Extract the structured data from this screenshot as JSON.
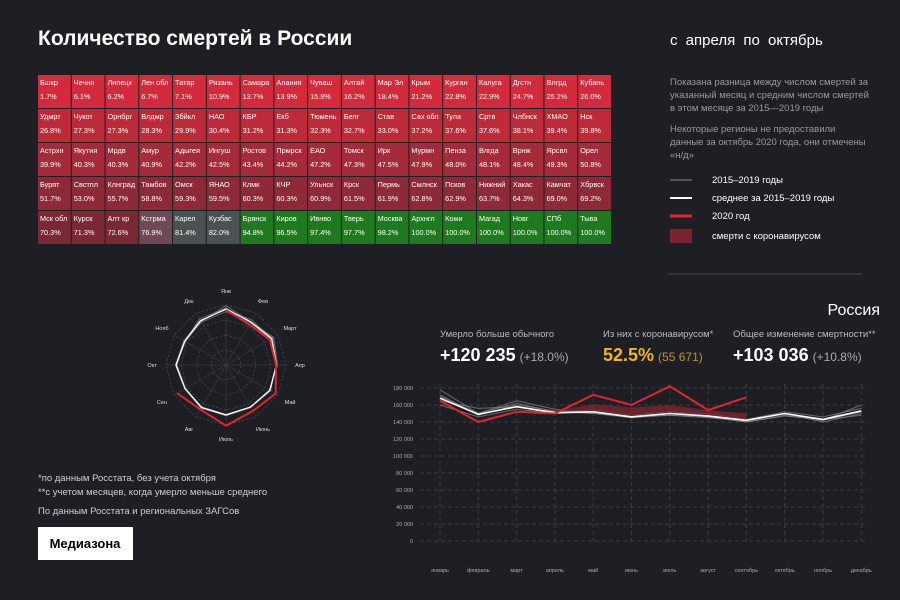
{
  "header": {
    "title": "Количество смертей в России",
    "period": "с апреля по октябрь"
  },
  "table": {
    "rows": [
      [
        [
          "Бшкр",
          "1.7%"
        ],
        [
          "Чечня",
          "6.1%"
        ],
        [
          "Липецк",
          "6.2%"
        ],
        [
          "Лен обл",
          "6.7%"
        ],
        [
          "Татар",
          "7.1%"
        ],
        [
          "Рязань",
          "10.9%"
        ],
        [
          "Самара",
          "13.7%"
        ],
        [
          "Алания",
          "13.9%"
        ],
        [
          "Чуваш",
          "15.8%"
        ],
        [
          "Алтай",
          "16.2%"
        ],
        [
          "Мар Эл",
          "18.4%"
        ],
        [
          "Крым",
          "21.2%"
        ],
        [
          "Курган",
          "22.8%"
        ],
        [
          "Калуга",
          "22.9%"
        ],
        [
          "Дгстн",
          "24.7%"
        ],
        [
          "Влгрд",
          "25.2%"
        ],
        [
          "Кубань",
          "26.0%"
        ]
      ],
      [
        [
          "Удмрт",
          "26.8%"
        ],
        [
          "Чукот",
          "27.3%"
        ],
        [
          "Орнбрг",
          "27.3%"
        ],
        [
          "Влдмр",
          "28.3%"
        ],
        [
          "Збйкл",
          "29.9%"
        ],
        [
          "НАО",
          "30.4%"
        ],
        [
          "КБР",
          "31.2%"
        ],
        [
          "Екб",
          "31.3%"
        ],
        [
          "Тюмень",
          "32.3%"
        ],
        [
          "Белг",
          "32.7%"
        ],
        [
          "Став",
          "33.0%"
        ],
        [
          "Сах обл",
          "37.2%"
        ],
        [
          "Тула",
          "37.6%"
        ],
        [
          "Сртв",
          "37.6%"
        ],
        [
          "Члбнск",
          "38.1%"
        ],
        [
          "ХМАО",
          "39.4%"
        ],
        [
          "Нск",
          "39.8%"
        ]
      ],
      [
        [
          "Астрхн",
          "39.9%"
        ],
        [
          "Якутия",
          "40.3%"
        ],
        [
          "Мрдв",
          "40.3%"
        ],
        [
          "Амур",
          "40.9%"
        ],
        [
          "Адыгея",
          "42.2%"
        ],
        [
          "Ингуш",
          "42.5%"
        ],
        [
          "Ростов",
          "43.4%"
        ],
        [
          "Прмрск",
          "44.2%"
        ],
        [
          "ЕАО",
          "47.2%"
        ],
        [
          "Томск",
          "47.3%"
        ],
        [
          "Ирк",
          "47.5%"
        ],
        [
          "Мурмн",
          "47.9%"
        ],
        [
          "Пенза",
          "48.0%"
        ],
        [
          "Влгда",
          "48.1%"
        ],
        [
          "Врнж",
          "48.4%"
        ],
        [
          "Ярсвл",
          "49.3%"
        ],
        [
          "Орел",
          "50.8%"
        ]
      ],
      [
        [
          "Бурят",
          "51.7%"
        ],
        [
          "Свстпл",
          "53.0%"
        ],
        [
          "Клнград",
          "55.7%"
        ],
        [
          "Тамбов",
          "58.8%"
        ],
        [
          "Омск",
          "59.3%"
        ],
        [
          "ЯНАО",
          "59.5%"
        ],
        [
          "Клмк",
          "60.3%"
        ],
        [
          "КЧР",
          "60.3%"
        ],
        [
          "Ульнск",
          "60.9%"
        ],
        [
          "Крск",
          "61.5%"
        ],
        [
          "Пермь",
          "61.9%"
        ],
        [
          "Смлнск",
          "62.8%"
        ],
        [
          "Псков",
          "62.9%"
        ],
        [
          "Нижний",
          "63.7%"
        ],
        [
          "Хакас",
          "64.3%"
        ],
        [
          "Камчат",
          "69.0%"
        ],
        [
          "Хбрвск",
          "69.2%"
        ]
      ],
      [
        [
          "Мск обл",
          "70.3%"
        ],
        [
          "Курск",
          "71.3%"
        ],
        [
          "Алт кр",
          "72.6%"
        ],
        [
          "Кстрма",
          "76.9%"
        ],
        [
          "Карел",
          "81.4%"
        ],
        [
          "Кузбас",
          "82.0%"
        ],
        [
          "Брянск",
          "94.8%"
        ],
        [
          "Киров",
          "96.5%"
        ],
        [
          "Ивнво",
          "97.4%"
        ],
        [
          "Тверь",
          "97.7%"
        ],
        [
          "Москва",
          "98.2%"
        ],
        [
          "Архнгл",
          "100.0%"
        ],
        [
          "Коми",
          "100.0%"
        ],
        [
          "Магад",
          "100.0%"
        ],
        [
          "Новг",
          "100.0%"
        ],
        [
          "СПб",
          "100.0%"
        ],
        [
          "Тыва",
          "100.0%"
        ]
      ]
    ]
  },
  "description": [
    "Показана разница между числом смертей за указанный месяц и средним числом смертей в этом месяце за 2015—2019 годы",
    "Некоторые регионы не предоставили данные за октябрь 2020 года, они отмечены «н/д»"
  ],
  "region": "Россия",
  "stats": [
    {
      "label": "Умерло больше обычного",
      "value": "+120 235",
      "extra": "(+18.0%)",
      "color": "#ffffff"
    },
    {
      "label": "Из них с коронавирусом*",
      "value": "52.5%",
      "extra": "(55 671)",
      "color": "#f2b51c"
    },
    {
      "label": "Общее изменение смертности**",
      "value": "+103 036",
      "extra": "(+10.8%)",
      "color": "#ffffff"
    }
  ],
  "footnotes": [
    "*по данным Росстата, без учета октября",
    "**с учетом месяцев, когда умерло меньше среднего",
    "По данным Росстата и региональных ЗАГСов"
  ],
  "logo": "Медиазона",
  "chart_data": [
    {
      "type": "radar",
      "categories": [
        "Янв",
        "Фев",
        "Март",
        "Апр",
        "Май",
        "Июнь",
        "Июль",
        "Авг",
        "Сен",
        "Окт",
        "Нояб",
        "Дек"
      ],
      "rlim": [
        0,
        180000
      ]
    },
    {
      "type": "line",
      "categories": [
        "январь",
        "февраль",
        "март",
        "апрель",
        "май",
        "июнь",
        "июль",
        "август",
        "сентябрь",
        "октябрь",
        "ноябрь",
        "декабрь"
      ],
      "ylim": [
        0,
        180000
      ],
      "yticks": [
        0,
        {
          "value": 20000,
          "label": "20 000"
        },
        {
          "value": 40000,
          "label": "40 000"
        },
        {
          "value": 60000,
          "label": "60 000"
        },
        {
          "value": 80000,
          "label": "80 000"
        },
        {
          "value": 100000,
          "label": "100 000"
        },
        {
          "value": 120000,
          "label": "120 000"
        },
        {
          "value": 140000,
          "label": "140 000"
        },
        {
          "value": 160000,
          "label": "160 000"
        },
        {
          "value": 180000,
          "label": "180 000"
        }
      ],
      "grid": true,
      "years": {
        "name": "2015–2019 годы",
        "color": "#8a8a8a",
        "lines": [
          [
            170000,
            150000,
            162000,
            152000,
            150000,
            145000,
            150000,
            147000,
            140000,
            148000,
            142000,
            160000
          ],
          [
            165000,
            156000,
            158000,
            150000,
            155000,
            148000,
            152000,
            150000,
            143000,
            152000,
            146000,
            156000
          ],
          [
            172000,
            148000,
            160000,
            153000,
            152000,
            146000,
            148000,
            145000,
            141000,
            150000,
            140000,
            150000
          ],
          [
            178000,
            150000,
            165000,
            155000,
            150000,
            147000,
            152000,
            148000,
            142000,
            150000,
            142000,
            152000
          ],
          [
            160000,
            146000,
            155000,
            150000,
            152000,
            145000,
            148000,
            146000,
            140000,
            147000,
            143000,
            148000
          ]
        ]
      },
      "series": [
        {
          "name": "среднее за 2015–2019 годы",
          "color": "#ffffff",
          "values": [
            168000,
            149000,
            158000,
            151000,
            152000,
            146000,
            150000,
            147000,
            142000,
            150000,
            143000,
            153000
          ]
        },
        {
          "name": "2020 год",
          "color": "#e0242f",
          "values": [
            165000,
            140000,
            152000,
            150000,
            172000,
            160000,
            182000,
            154000,
            169000,
            null,
            null,
            null
          ]
        },
        {
          "name": "смерти с коронавирусом",
          "color": "#7a2430",
          "stacked_on": 0,
          "values": [
            null,
            null,
            null,
            2000,
            9000,
            11000,
            10000,
            7000,
            8000,
            null,
            null,
            null
          ]
        }
      ]
    }
  ]
}
